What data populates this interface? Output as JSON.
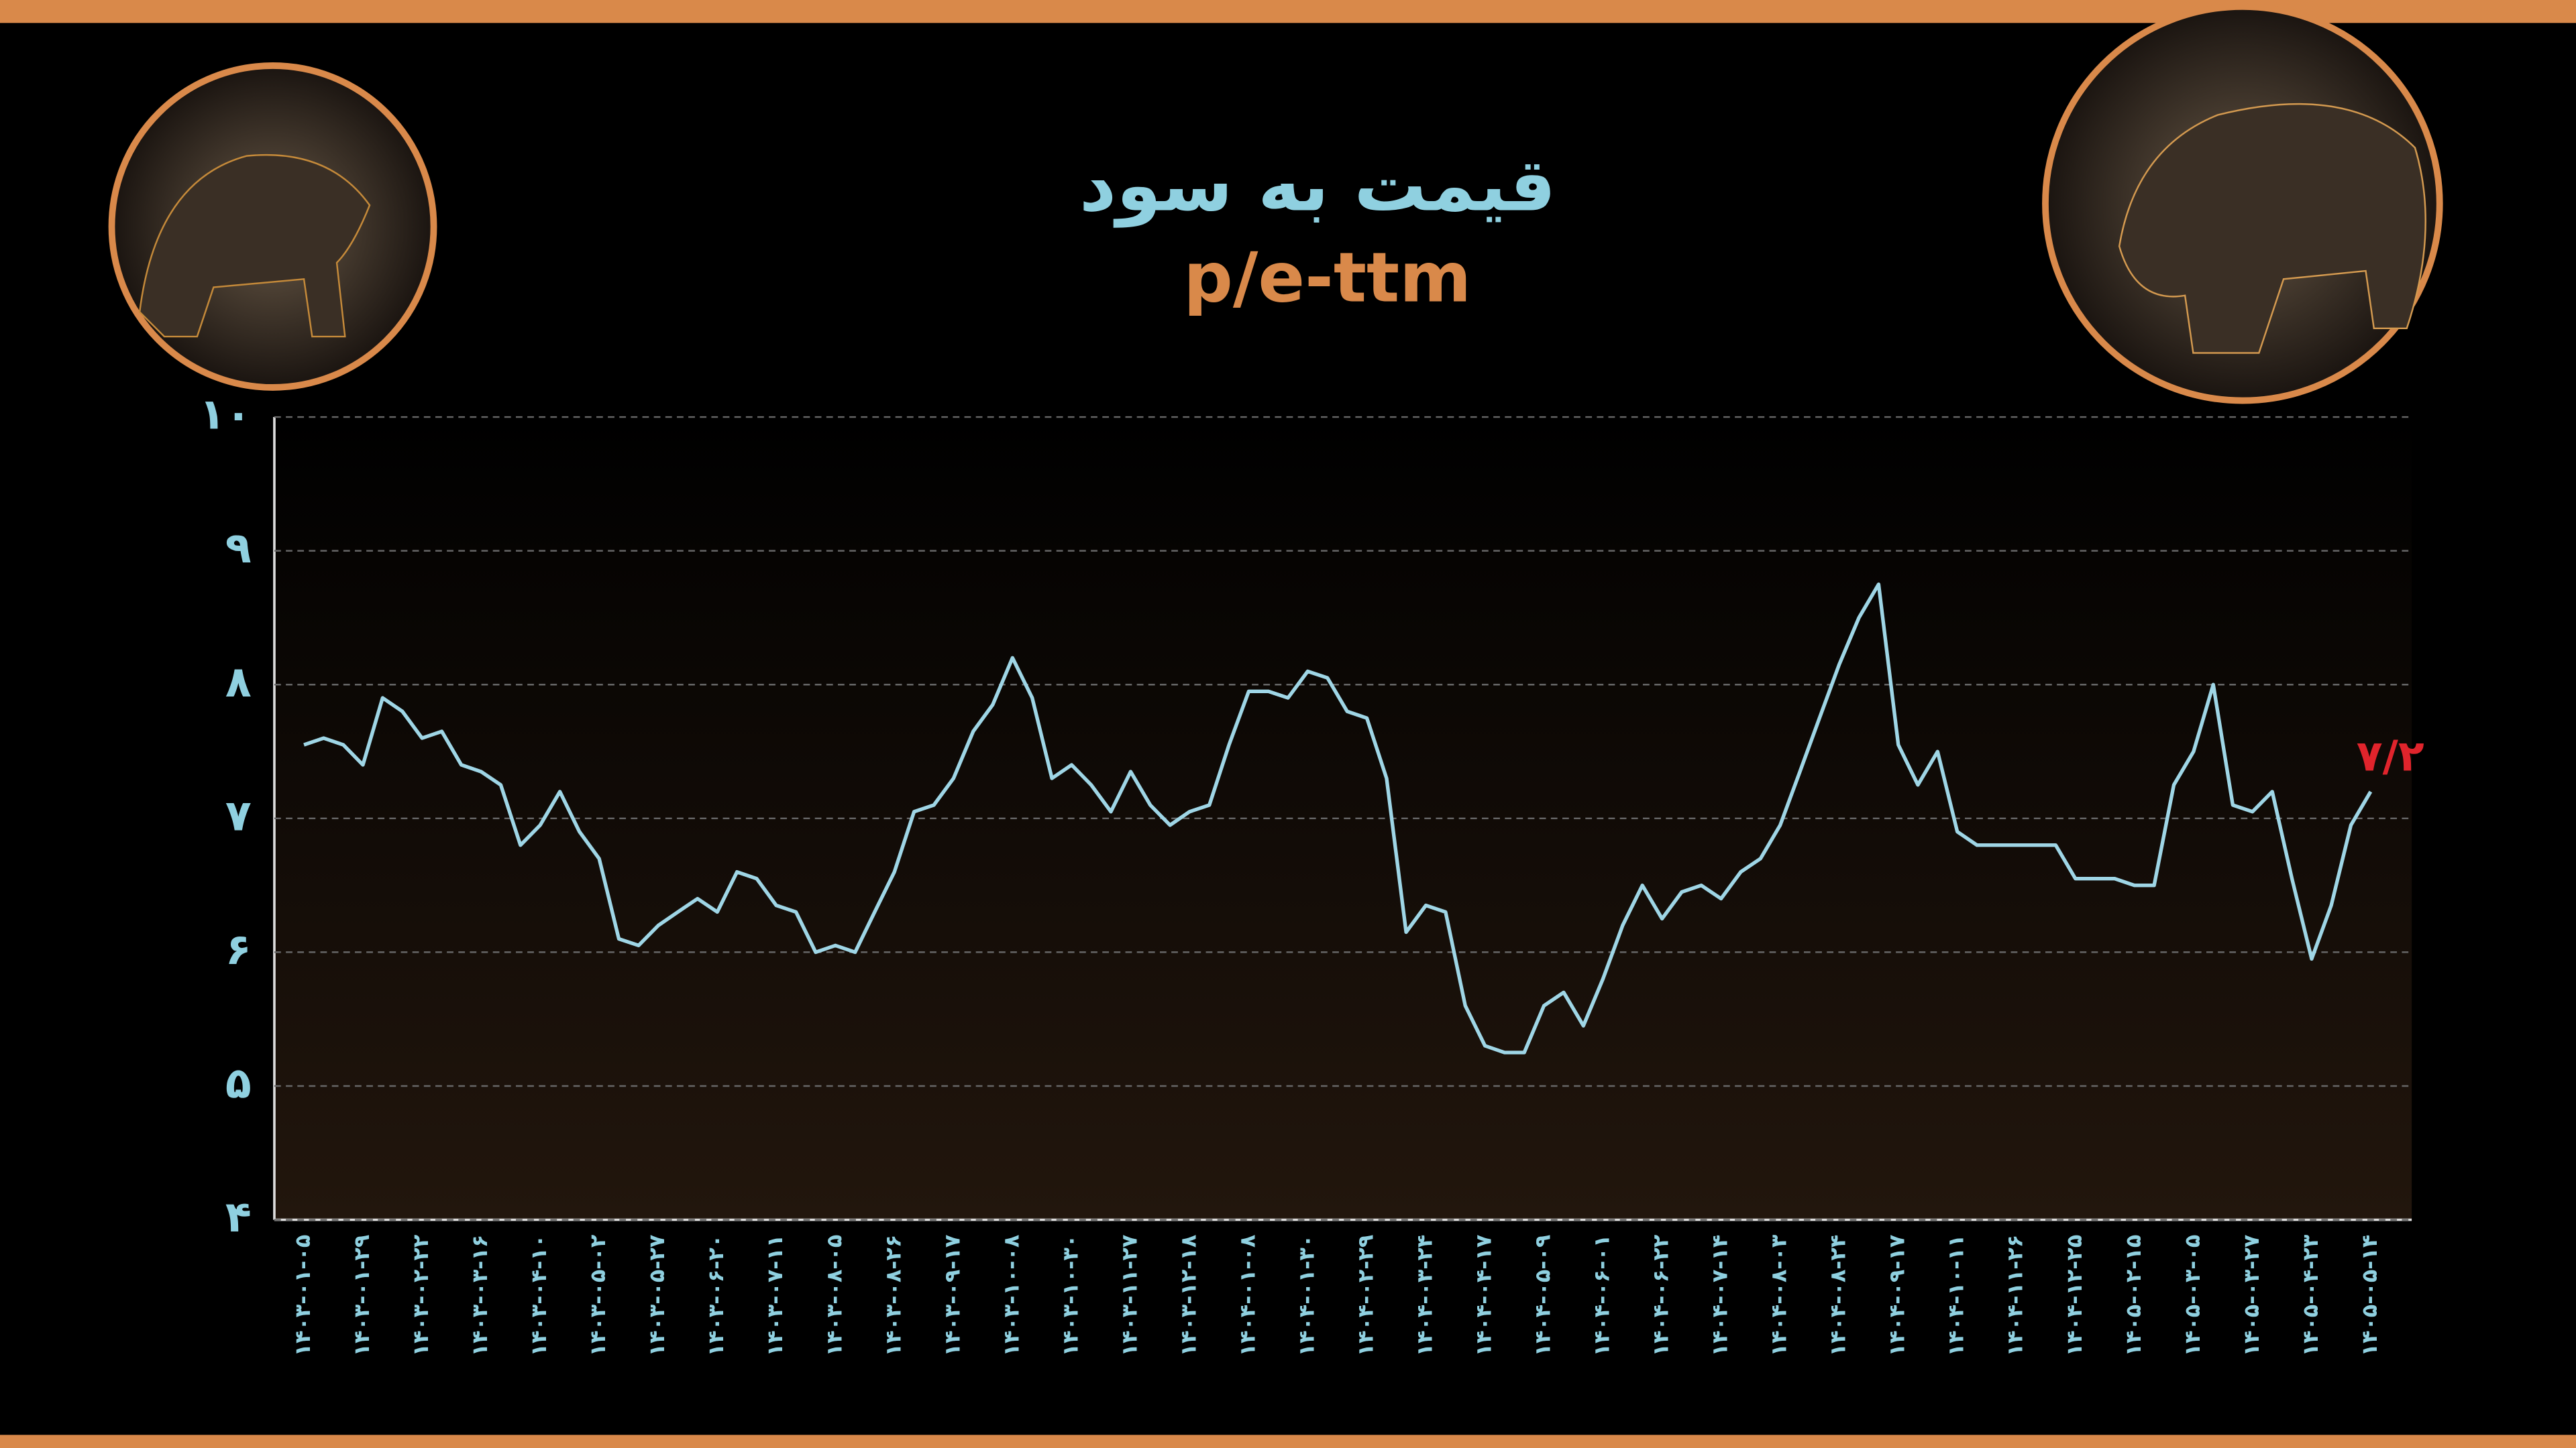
{
  "chart_data": {
    "type": "line",
    "title": "قیمت به سود",
    "subtitle": "p/e-ttm",
    "categories": [
      "۱۴۰۳-۰۱-۰۵",
      null,
      null,
      "۱۴۰۳-۰۱-۲۹",
      null,
      null,
      "۱۴۰۳-۰۲-۲۲",
      null,
      null,
      "۱۴۰۳-۰۳-۱۶",
      null,
      null,
      "۱۴۰۳-۰۴-۱۰",
      null,
      null,
      "۱۴۰۳-۰۵-۰۲",
      null,
      null,
      "۱۴۰۳-۰۵-۲۷",
      null,
      null,
      "۱۴۰۳-۰۶-۲۰",
      null,
      null,
      "۱۴۰۳-۰۷-۱۱",
      null,
      null,
      "۱۴۰۳-۰۸-۰۵",
      null,
      null,
      "۱۴۰۳-۰۸-۲۶",
      null,
      null,
      "۱۴۰۳-۰۹-۱۷",
      null,
      null,
      "۱۴۰۳-۱۰-۰۸",
      null,
      null,
      "۱۴۰۳-۱۰-۳۰",
      null,
      null,
      "۱۴۰۳-۱۱-۲۷",
      null,
      null,
      "۱۴۰۳-۱۲-۱۸",
      null,
      null,
      "۱۴۰۴-۰۱-۰۸",
      null,
      null,
      "۱۴۰۴-۰۱-۳۰",
      null,
      null,
      "۱۴۰۴-۰۲-۲۹",
      null,
      null,
      "۱۴۰۴-۰۳-۲۴",
      null,
      null,
      "۱۴۰۴-۰۴-۱۷",
      null,
      null,
      "۱۴۰۴-۰۵-۰۹",
      null,
      null,
      "۱۴۰۴-۰۶-۰۱",
      null,
      null,
      "۱۴۰۴-۰۶-۲۲",
      null,
      null,
      "۱۴۰۴-۰۷-۱۴",
      null,
      null,
      "۱۴۰۴-۰۸-۰۳",
      null,
      null,
      "۱۴۰۴-۰۸-۲۴",
      null,
      null,
      "۱۴۰۴-۰۹-۱۷",
      null,
      null,
      "۱۴۰۴-۱۰-۱۱",
      null,
      null,
      "۱۴۰۴-۱۱-۲۶",
      null,
      null,
      "۱۴۰۴-۱۲-۲۵",
      null,
      null,
      "۱۴۰۵-۰۲-۱۵",
      null,
      null,
      "۱۴۰۵-۰۳-۰۵",
      null,
      null,
      "۱۴۰۵-۰۳-۲۷",
      null,
      null,
      "۱۴۰۵-۰۴-۲۳",
      null,
      null,
      "۱۴۰۵-۰۵-۱۴"
    ],
    "series": [
      {
        "color": "#9fd6e6",
        "values": [
          7.55,
          7.6,
          7.55,
          7.4,
          7.9,
          7.8,
          7.6,
          7.65,
          7.4,
          7.35,
          7.25,
          6.8,
          6.95,
          7.2,
          6.9,
          6.7,
          6.1,
          6.05,
          6.2,
          6.3,
          6.4,
          6.3,
          6.6,
          6.55,
          6.35,
          6.3,
          6.0,
          6.05,
          6.0,
          6.3,
          6.6,
          7.05,
          7.1,
          7.3,
          7.65,
          7.85,
          8.2,
          7.9,
          7.3,
          7.4,
          7.25,
          7.05,
          7.35,
          7.1,
          6.95,
          7.05,
          7.1,
          7.55,
          7.95,
          7.95,
          7.9,
          8.1,
          8.05,
          7.8,
          7.75,
          7.3,
          6.15,
          6.35,
          6.3,
          5.6,
          5.3,
          5.25,
          5.25,
          5.6,
          5.7,
          5.45,
          5.8,
          6.2,
          6.5,
          6.25,
          6.45,
          6.5,
          6.4,
          6.6,
          6.7,
          6.95,
          7.35,
          7.75,
          8.15,
          8.5,
          8.75,
          7.55,
          7.25,
          7.5,
          6.9,
          6.8,
          6.8,
          6.8,
          6.8,
          6.8,
          6.55,
          6.55,
          6.55,
          6.5,
          6.5,
          7.25,
          7.5,
          8.0,
          7.1,
          7.05,
          7.2,
          6.55,
          5.95,
          6.35,
          6.95,
          7.2
        ],
        "value_labels": [
          null,
          null,
          null,
          null,
          null,
          null,
          null,
          null,
          null,
          null,
          null,
          null,
          null,
          null,
          null,
          null,
          null,
          null,
          null,
          null,
          null,
          null,
          null,
          null,
          null,
          null,
          null,
          null,
          null,
          null,
          null,
          null,
          null,
          null,
          null,
          null,
          null,
          null,
          null,
          null,
          null,
          null,
          null,
          null,
          null,
          null,
          null,
          null,
          null,
          null,
          null,
          null,
          null,
          null,
          null,
          null,
          null,
          null,
          null,
          null,
          null,
          null,
          null,
          null,
          null,
          null,
          null,
          null,
          null,
          null,
          null,
          null,
          null,
          null,
          null,
          null,
          null,
          null,
          null,
          null,
          null,
          null,
          null,
          null,
          null,
          null,
          null,
          null,
          null,
          null,
          null,
          null,
          null,
          null,
          null,
          null,
          null,
          null,
          null,
          null,
          null,
          null,
          null,
          null,
          null,
          "۷/۲"
        ],
        "label_color": "#e0242c"
      }
    ],
    "ylim": [
      4,
      10
    ],
    "yticks": [
      {
        "value": 4,
        "label": "۴"
      },
      {
        "value": 5,
        "label": "۵"
      },
      {
        "value": 6,
        "label": "۶"
      },
      {
        "value": 7,
        "label": "۷"
      },
      {
        "value": 8,
        "label": "۸"
      },
      {
        "value": 9,
        "label": "۹"
      },
      {
        "value": 10,
        "label": "۱۰"
      }
    ],
    "grid": true
  }
}
